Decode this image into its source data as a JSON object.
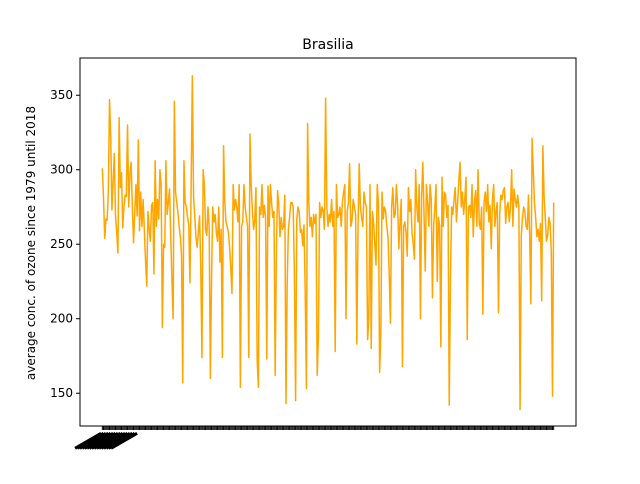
{
  "chart_data": {
    "type": "line",
    "title": "Brasilia",
    "xlabel": "",
    "ylabel": "average conc. of ozone since 1979 until 2018",
    "ylim": [
      128,
      375
    ],
    "yticks": [
      150,
      200,
      250,
      300,
      350
    ],
    "grid": false,
    "line_color": "#ffa500",
    "y": [
      301,
      281,
      254,
      267,
      266,
      285,
      347,
      322,
      273,
      292,
      311,
      269,
      258,
      244,
      335,
      288,
      298,
      261,
      275,
      283,
      282,
      330,
      275,
      297,
      305,
      276,
      251,
      271,
      290,
      269,
      320,
      259,
      285,
      262,
      280,
      260,
      239,
      222,
      272,
      260,
      252,
      276,
      278,
      230,
      306,
      262,
      280,
      267,
      300,
      290,
      194,
      250,
      248,
      306,
      270,
      278,
      287,
      256,
      225,
      200,
      346,
      285,
      278,
      271,
      262,
      255,
      242,
      157,
      306,
      278,
      275,
      268,
      263,
      224,
      290,
      363,
      282,
      269,
      255,
      248,
      258,
      269,
      235,
      174,
      300,
      290,
      260,
      256,
      275,
      262,
      160,
      228,
      275,
      265,
      270,
      258,
      252,
      275,
      238,
      260,
      174,
      316,
      279,
      265,
      262,
      258,
      248,
      234,
      217,
      290,
      273,
      280,
      275,
      265,
      290,
      154,
      262,
      265,
      290,
      275,
      268,
      262,
      174,
      324,
      290,
      273,
      260,
      266,
      288,
      172,
      154,
      275,
      270,
      290,
      268,
      276,
      268,
      173,
      289,
      262,
      290,
      278,
      268,
      272,
      162,
      245,
      286,
      277,
      255,
      268,
      260,
      262,
      283,
      143,
      224,
      260,
      268,
      278,
      278,
      275,
      230,
      145,
      267,
      275,
      272,
      258,
      260,
      249,
      263,
      219,
      153,
      331,
      278,
      262,
      268,
      255,
      270,
      264,
      270,
      162,
      188,
      278,
      268,
      275,
      272,
      260,
      348,
      275,
      262,
      270,
      265,
      280,
      262,
      272,
      178,
      290,
      268,
      270,
      275,
      262,
      278,
      285,
      290,
      200,
      272,
      278,
      304,
      262,
      266,
      280,
      275,
      270,
      183,
      260,
      304,
      275,
      268,
      262,
      285,
      278,
      275,
      186,
      200,
      290,
      180,
      272,
      264,
      250,
      236,
      290,
      278,
      164,
      190,
      285,
      267,
      275,
      272,
      262,
      255,
      230,
      197,
      275,
      288,
      268,
      270,
      290,
      276,
      247,
      265,
      280,
      168,
      262,
      265,
      258,
      242,
      288,
      272,
      280,
      258,
      250,
      240,
      300,
      275,
      265,
      290,
      200,
      283,
      305,
      270,
      232,
      290,
      278,
      262,
      290,
      280,
      214,
      262,
      275,
      290,
      225,
      268,
      262,
      181,
      295,
      262,
      285,
      283,
      268,
      276,
      142,
      227,
      275,
      270,
      280,
      288,
      265,
      278,
      293,
      305,
      275,
      285,
      270,
      281,
      295,
      186,
      275,
      276,
      268,
      290,
      255,
      278,
      286,
      262,
      300,
      264,
      260,
      275,
      203,
      278,
      285,
      272,
      290,
      265,
      276,
      247,
      280,
      290,
      262,
      272,
      278,
      204,
      270,
      283,
      280,
      286,
      288,
      264,
      275,
      278,
      265,
      275,
      300,
      262,
      287,
      280,
      275,
      283,
      275,
      139,
      256,
      268,
      275,
      272,
      262,
      260,
      283,
      256,
      210,
      321,
      300,
      278,
      268,
      255,
      260,
      252,
      264,
      212,
      316,
      282,
      268,
      252,
      256,
      268,
      264,
      245,
      148,
      278
    ]
  }
}
